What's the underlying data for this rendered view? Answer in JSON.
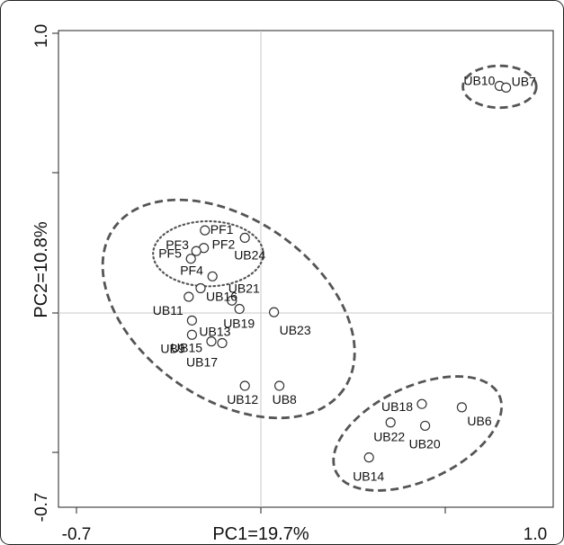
{
  "chart_data": {
    "type": "scatter",
    "xlabel": "PC1=19.7%",
    "ylabel": "PC2=10.8%",
    "xlim": [
      -0.7,
      1.0
    ],
    "ylim": [
      -0.7,
      1.0
    ],
    "x_tick_labels": [
      "-0.7",
      "1.0"
    ],
    "y_tick_labels": [
      "1.0",
      "-0.7"
    ],
    "grid": false,
    "zero_lines": true,
    "points": [
      {
        "label": "PF1",
        "x": -0.224,
        "y": 0.285
      },
      {
        "label": "PF2",
        "x": -0.228,
        "y": 0.221
      },
      {
        "label": "PF3",
        "x": -0.256,
        "y": 0.21
      },
      {
        "label": "PF5",
        "x": -0.276,
        "y": 0.182
      },
      {
        "label": "PF4",
        "x": -0.196,
        "y": 0.118
      },
      {
        "label": "UB24",
        "x": -0.076,
        "y": 0.258
      },
      {
        "label": "UB21",
        "x": -0.124,
        "y": 0.03
      },
      {
        "label": "UB16",
        "x": -0.24,
        "y": 0.075
      },
      {
        "label": "UB11",
        "x": -0.284,
        "y": 0.044
      },
      {
        "label": "UB19",
        "x": -0.096,
        "y": 0.0
      },
      {
        "label": "UB23",
        "x": 0.032,
        "y": -0.012
      },
      {
        "label": "UB13",
        "x": -0.272,
        "y": -0.042
      },
      {
        "label": "UB9",
        "x": -0.272,
        "y": -0.094
      },
      {
        "label": "UB15",
        "x": -0.2,
        "y": -0.118
      },
      {
        "label": "UB17",
        "x": -0.16,
        "y": -0.124
      },
      {
        "label": "UB12",
        "x": -0.076,
        "y": -0.279
      },
      {
        "label": "UB8",
        "x": 0.052,
        "y": -0.279
      },
      {
        "label": "UB10",
        "x": 0.868,
        "y": 0.809
      },
      {
        "label": "UB7",
        "x": 0.892,
        "y": 0.803
      },
      {
        "label": "UB18",
        "x": 0.58,
        "y": -0.345
      },
      {
        "label": "UB6",
        "x": 0.728,
        "y": -0.357
      },
      {
        "label": "UB22",
        "x": 0.464,
        "y": -0.412
      },
      {
        "label": "UB20",
        "x": 0.592,
        "y": -0.424
      },
      {
        "label": "UB14",
        "x": 0.384,
        "y": -0.539
      }
    ],
    "groups": [
      {
        "style": "dotted",
        "cx": -0.212,
        "cy": 0.2,
        "rx": 0.204,
        "ry": 0.118,
        "angle": 0
      },
      {
        "style": "dashed",
        "cx": -0.136,
        "cy": 0.0,
        "rx": 0.52,
        "ry": 0.326,
        "angle": 35
      },
      {
        "style": "dashed",
        "cx": 0.868,
        "cy": 0.806,
        "rx": 0.136,
        "ry": 0.076,
        "angle": 0
      },
      {
        "style": "dashed",
        "cx": 0.564,
        "cy": -0.452,
        "rx": 0.334,
        "ry": 0.17,
        "angle": -25
      }
    ]
  }
}
